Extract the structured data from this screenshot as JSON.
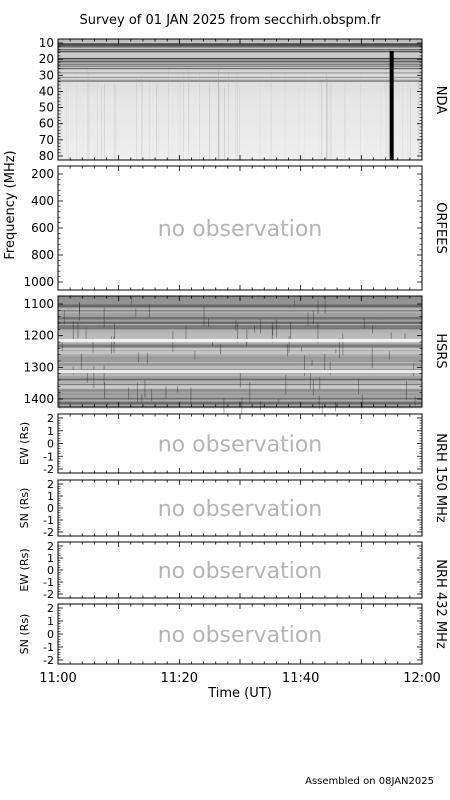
{
  "title": "Survey of 01 JAN 2025 from secchirh.obspm.fr",
  "footer": "Assembled on 08JAN2025",
  "x_axis": {
    "label": "Time (UT)",
    "ticks": [
      "11:00",
      "11:20",
      "11:40",
      "12:00"
    ],
    "range": [
      "11:00",
      "12:00"
    ]
  },
  "y_axis_label": "Frequency (MHz)",
  "colors": {
    "background": "#ffffff",
    "frame": "#000000",
    "no_observation_text": "#b4b4b4"
  },
  "chart_data": [
    {
      "type": "heatmap",
      "instrument": "NDA",
      "ylabel": "",
      "ylim": [
        10,
        80
      ],
      "y_ticks": [
        "10",
        "20",
        "30",
        "40",
        "50",
        "60",
        "70",
        "80"
      ],
      "colormap": "grayscale",
      "has_data": true,
      "notable_features": {
        "vertical_dark_band_time": "11:55"
      }
    },
    {
      "type": "heatmap",
      "instrument": "ORFEES",
      "ylim": [
        200,
        1000
      ],
      "y_ticks": [
        "200",
        "400",
        "600",
        "800",
        "1000"
      ],
      "has_data": false,
      "message": "no observation"
    },
    {
      "type": "heatmap",
      "instrument": "HSRS",
      "ylim": [
        1050,
        1470
      ],
      "y_ticks": [
        "1100",
        "1200",
        "1300",
        "1400"
      ],
      "colormap": "grayscale",
      "has_data": true
    },
    {
      "type": "heatmap",
      "instrument": "NRH 150 MHz",
      "ylabel": "EW (Rs)",
      "ylim": [
        -2,
        2
      ],
      "y_ticks": [
        "2",
        "1",
        "0",
        "-1",
        "-2"
      ],
      "has_data": false,
      "message": "no observation"
    },
    {
      "type": "heatmap",
      "instrument": "NRH 150 MHz",
      "ylabel": "SN (Rs)",
      "ylim": [
        -2,
        2
      ],
      "y_ticks": [
        "2",
        "1",
        "0",
        "-1",
        "-2"
      ],
      "has_data": false,
      "message": "no observation"
    },
    {
      "type": "heatmap",
      "instrument": "NRH 432 MHz",
      "ylabel": "EW (Rs)",
      "ylim": [
        -2,
        2
      ],
      "y_ticks": [
        "2",
        "1",
        "0",
        "-1",
        "-2"
      ],
      "has_data": false,
      "message": "no observation"
    },
    {
      "type": "heatmap",
      "instrument": "NRH 432 MHz",
      "ylabel": "SN (Rs)",
      "ylim": [
        -2,
        2
      ],
      "y_ticks": [
        "2",
        "1",
        "0",
        "-1",
        "-2"
      ],
      "has_data": false,
      "message": "no observation"
    }
  ],
  "panel_labels": {
    "nda": "NDA",
    "orfees": "ORFEES",
    "hsrs": "HSRS",
    "nrh150": "NRH 150 MHz",
    "nrh432": "NRH 432 MHz"
  }
}
